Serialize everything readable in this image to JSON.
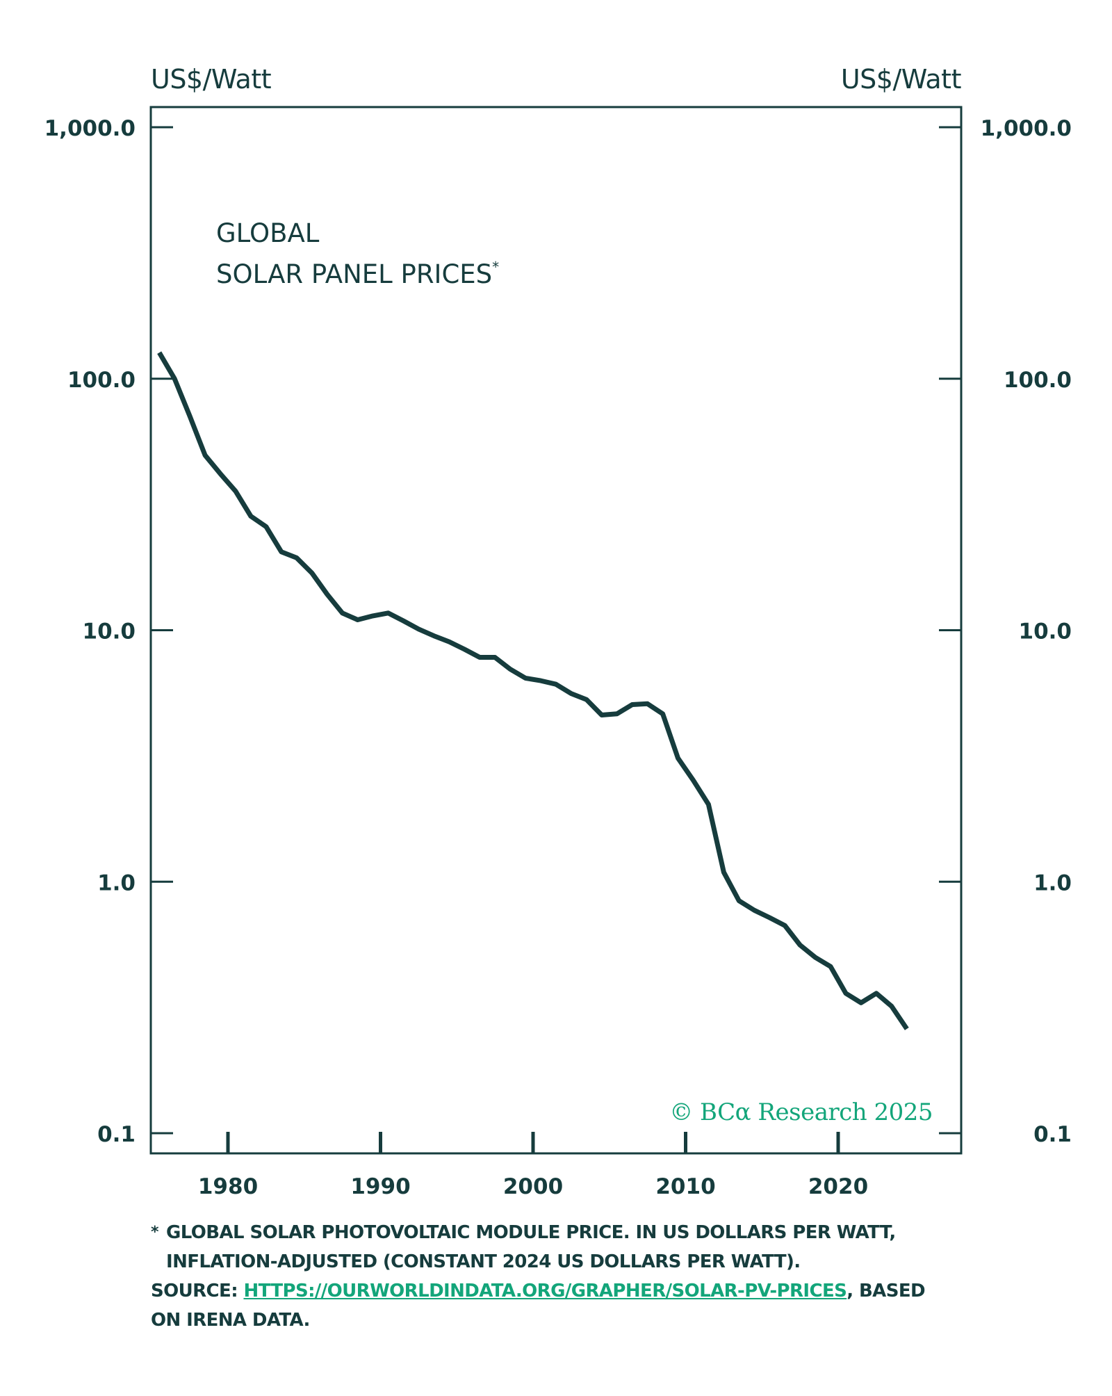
{
  "header": {
    "left_unit": "US$/Watt",
    "right_unit": "US$/Watt"
  },
  "title": {
    "line1": "GLOBAL",
    "line2": "SOLAR PANEL PRICES",
    "marker": "*"
  },
  "credit": "© BCα Research 2025",
  "footer": {
    "note_marker": "*",
    "note": "GLOBAL SOLAR PHOTOVOLTAIC MODULE PRICE. IN US DOLLARS PER WATT, INFLATION-ADJUSTED (CONSTANT 2024 US DOLLARS PER WATT).",
    "source_label": "SOURCE:",
    "source_link": "HTTPS://OURWORLDINDATA.ORG/GRAPHER/SOLAR-PV-PRICES",
    "source_suffix": ", BASED ON IRENA DATA."
  },
  "colors": {
    "line": "#163c3d",
    "axis": "#163c3d",
    "accent": "#13a57a"
  },
  "chart_data": {
    "type": "line",
    "title": "GLOBAL SOLAR PANEL PRICES*",
    "xlabel": "",
    "ylabel": "US$/Watt",
    "yscale": "log",
    "ylim": [
      0.1,
      1000
    ],
    "xlim": [
      1975,
      2028
    ],
    "grid": false,
    "legend": "none",
    "x_ticks": [
      1980,
      1990,
      2000,
      2010,
      2020
    ],
    "x_tick_labels": [
      "1980",
      "1990",
      "2000",
      "2010",
      "2020"
    ],
    "y_ticks": [
      1000,
      100,
      10,
      1,
      0.1
    ],
    "y_tick_labels": [
      "1,000.0",
      "100.0",
      "10.0",
      "1.0",
      "0.1"
    ],
    "series": [
      {
        "name": "Global solar PV module price (constant 2024 US$/W)",
        "x": [
          1975,
          1976,
          1977,
          1978,
          1979,
          1980,
          1981,
          1982,
          1983,
          1984,
          1985,
          1986,
          1987,
          1988,
          1989,
          1990,
          1991,
          1992,
          1993,
          1994,
          1995,
          1996,
          1997,
          1998,
          1999,
          2000,
          2001,
          2002,
          2003,
          2004,
          2005,
          2006,
          2007,
          2008,
          2009,
          2010,
          2011,
          2012,
          2013,
          2014,
          2015,
          2016,
          2017,
          2018,
          2019,
          2020,
          2021,
          2022,
          2023,
          2024
        ],
        "values": [
          127,
          100,
          71,
          49.6,
          41.9,
          35.7,
          28.4,
          25.8,
          20.5,
          19.4,
          16.9,
          13.9,
          11.7,
          11.0,
          11.4,
          11.7,
          10.9,
          10.1,
          9.5,
          9.0,
          8.4,
          7.8,
          7.8,
          7.0,
          6.45,
          6.3,
          6.1,
          5.6,
          5.3,
          4.6,
          4.65,
          5.06,
          5.1,
          4.65,
          3.1,
          2.53,
          2.03,
          1.09,
          0.84,
          0.77,
          0.72,
          0.67,
          0.56,
          0.5,
          0.46,
          0.36,
          0.33,
          0.36,
          0.32,
          0.26
        ]
      }
    ]
  }
}
